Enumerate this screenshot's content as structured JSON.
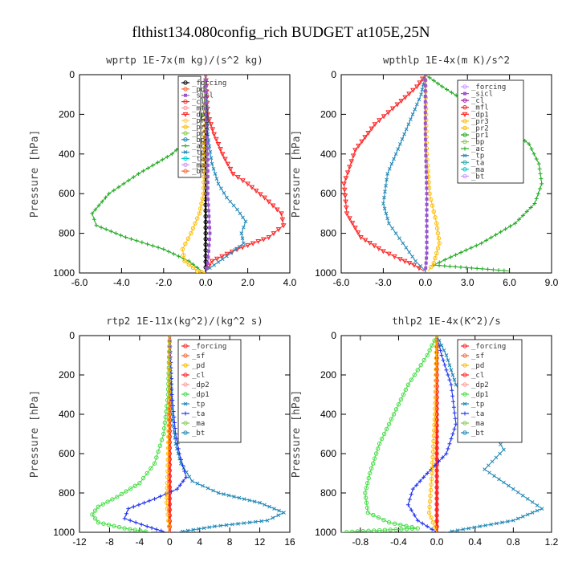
{
  "figure_title": "flthist134.080config_rich  BUDGET at105E,25N",
  "chart_data": [
    {
      "type": "line",
      "title": "wprtp  1E-7x(m kg)/(s^2 kg)",
      "ylabel": "Pressure [hPa]",
      "xlim": [
        -6,
        4
      ],
      "ylim": [
        0,
        1000
      ],
      "xticks": [
        -6,
        -4,
        -2,
        0,
        2,
        4
      ],
      "xtick_labels": [
        "-6.0",
        "-4.0",
        "-2.0",
        "0.0",
        "2.0",
        "4.0"
      ],
      "yticks": [
        0,
        200,
        400,
        600,
        800,
        1000
      ],
      "ytick_labels": [
        "0",
        "200",
        "400",
        "600",
        "800",
        "1000"
      ],
      "legend_position": "top-right",
      "legend": [
        "_forcing",
        "_pd",
        "_sicl",
        "_cl",
        "_mfl",
        "_dp1",
        "_pr3",
        "_pr2",
        "_pr1",
        "_bp",
        "_ac",
        "_tp",
        "_ta",
        "_ma",
        "_bt"
      ],
      "series": [
        {
          "name": "_forcing",
          "color": "#000000",
          "marker": "o",
          "x": [
            0,
            0,
            0,
            0,
            0,
            0
          ],
          "y": [
            0,
            200,
            400,
            600,
            800,
            1000
          ]
        },
        {
          "name": "_ac",
          "color": "#22aa22",
          "marker": "+",
          "x": [
            0,
            -0.1,
            -0.6,
            -1.6,
            -3.2,
            -4.6,
            -5.4,
            -5.2,
            -3.8,
            -2.0,
            -0.8,
            -0.2
          ],
          "y": [
            0,
            200,
            300,
            400,
            500,
            600,
            700,
            760,
            820,
            880,
            940,
            990
          ]
        },
        {
          "name": "_dp1",
          "color": "#ff2222",
          "marker": "v",
          "x": [
            0,
            0.1,
            0.4,
            0.8,
            1.3,
            2.0,
            2.8,
            3.6,
            3.7,
            3.0,
            1.5,
            0.3,
            0
          ],
          "y": [
            0,
            200,
            300,
            400,
            500,
            550,
            620,
            700,
            760,
            820,
            880,
            940,
            990
          ]
        },
        {
          "name": "_tp",
          "color": "#1f88b8",
          "marker": "x",
          "x": [
            0,
            0.1,
            0.3,
            0.6,
            1.0,
            1.5,
            1.9,
            1.7,
            1.8,
            1.2,
            0.4,
            0
          ],
          "y": [
            0,
            300,
            450,
            550,
            620,
            680,
            740,
            800,
            850,
            900,
            960,
            990
          ]
        },
        {
          "name": "_pr2",
          "color": "#ffbb00",
          "marker": "o",
          "x": [
            0,
            -0.1,
            -0.3,
            -0.7,
            -1.1,
            -1.0,
            -0.4,
            0
          ],
          "y": [
            0,
            600,
            700,
            800,
            880,
            940,
            990,
            1000
          ]
        },
        {
          "name": "_sicl",
          "color": "#9955cc",
          "marker": "s",
          "x": [
            0,
            0,
            0.1,
            0.1,
            0.2,
            0.1,
            0
          ],
          "y": [
            0,
            200,
            400,
            600,
            800,
            950,
            1000
          ]
        }
      ]
    },
    {
      "type": "line",
      "title": "wpthlp  1E-4x(m K)/s^2",
      "ylabel": "Pressure [hPa]",
      "xlim": [
        -6,
        9
      ],
      "ylim": [
        0,
        1000
      ],
      "xticks": [
        -6,
        -3,
        0,
        3,
        6,
        9
      ],
      "xtick_labels": [
        "-6.0",
        "-3.0",
        "0.0",
        "3.0",
        "6.0",
        "9.0"
      ],
      "yticks": [
        0,
        200,
        400,
        600,
        800,
        1000
      ],
      "ytick_labels": [
        "0",
        "200",
        "400",
        "600",
        "800",
        "1000"
      ],
      "legend_position": "top-right",
      "legend": [
        "_forcing",
        "_sicl",
        "_cl",
        "_mfl",
        "_dp1",
        "_pr3",
        "_pr2",
        "_pr1",
        "_bp",
        "_ac",
        "_tp",
        "_ta",
        "_ma",
        "_bt"
      ],
      "series": [
        {
          "name": "_ac",
          "color": "#22aa22",
          "marker": "+",
          "x": [
            0,
            1.2,
            3.2,
            5.6,
            7.4,
            8.1,
            8.3,
            7.8,
            6.4,
            4.0,
            1.8,
            0.6,
            6.0
          ],
          "y": [
            0,
            60,
            150,
            250,
            350,
            450,
            550,
            650,
            750,
            850,
            920,
            960,
            990
          ]
        },
        {
          "name": "_dp1",
          "color": "#ff2222",
          "marker": "v",
          "x": [
            0,
            -0.6,
            -2.0,
            -3.6,
            -5.0,
            -5.8,
            -5.6,
            -4.6,
            -3.0,
            -1.8,
            -0.8,
            -0.1
          ],
          "y": [
            0,
            60,
            150,
            250,
            380,
            550,
            700,
            820,
            890,
            930,
            960,
            990
          ]
        },
        {
          "name": "_tp",
          "color": "#1f88b8",
          "marker": "x",
          "x": [
            0,
            -0.3,
            -0.9,
            -1.8,
            -2.7,
            -3.0,
            -2.6,
            -1.6,
            -0.7,
            0
          ],
          "y": [
            0,
            100,
            200,
            350,
            500,
            650,
            750,
            850,
            940,
            990
          ]
        },
        {
          "name": "_pr2",
          "color": "#ffbb00",
          "marker": "o",
          "x": [
            0,
            0.1,
            0.3,
            0.8,
            1.0,
            0.6,
            0.2
          ],
          "y": [
            0,
            400,
            600,
            750,
            850,
            950,
            990
          ]
        },
        {
          "name": "_sicl",
          "color": "#9955cc",
          "marker": "s",
          "x": [
            0,
            0,
            0.1,
            0.1,
            0
          ],
          "y": [
            0,
            300,
            600,
            900,
            1000
          ]
        }
      ]
    },
    {
      "type": "line",
      "title": "rtp2  1E-11x(kg^2)/(kg^2 s)",
      "ylabel": "Pressure [hPa]",
      "xlim": [
        -12,
        16
      ],
      "ylim": [
        0,
        1000
      ],
      "xticks": [
        -12,
        -8,
        -4,
        0,
        4,
        8,
        12,
        16
      ],
      "xtick_labels": [
        "-12",
        "-8",
        "-4",
        "0",
        "4",
        "8",
        "12",
        "16"
      ],
      "yticks": [
        0,
        200,
        400,
        600,
        800,
        1000
      ],
      "ytick_labels": [
        "0",
        "200",
        "400",
        "600",
        "800",
        "1000"
      ],
      "legend_position": "top-right",
      "legend": [
        "_forcing",
        "_sf",
        "_pd",
        "_cl",
        "_dp2",
        "_dp1",
        "_tp",
        "_ta",
        "_ma",
        "_bt"
      ],
      "series": [
        {
          "name": "_forcing",
          "color": "#ff2222",
          "marker": "o",
          "x": [
            0,
            0,
            0,
            0,
            0,
            0
          ],
          "y": [
            0,
            200,
            400,
            600,
            800,
            1000
          ]
        },
        {
          "name": "_dp1",
          "color": "#44dd44",
          "marker": "o",
          "x": [
            0,
            -0.2,
            -0.8,
            -2.0,
            -4.0,
            -7.0,
            -9.5,
            -10.3,
            -9.5,
            -6.0,
            -2.5
          ],
          "y": [
            0,
            300,
            500,
            650,
            750,
            820,
            870,
            910,
            950,
            980,
            1000
          ]
        },
        {
          "name": "_tp",
          "color": "#1f88b8",
          "marker": "x",
          "x": [
            0,
            0.3,
            0.8,
            1.5,
            3.0,
            6.5,
            12.0,
            15.2,
            13.0,
            6.0,
            1.0
          ],
          "y": [
            0,
            400,
            550,
            650,
            740,
            800,
            850,
            900,
            940,
            970,
            1000
          ]
        },
        {
          "name": "_ta",
          "color": "#2233ee",
          "marker": "+",
          "x": [
            0,
            0.3,
            0.8,
            1.3,
            2.2,
            1.0,
            -2.0,
            -5.5,
            -6.0,
            -3.0,
            -0.5
          ],
          "y": [
            0,
            300,
            500,
            600,
            720,
            780,
            830,
            880,
            930,
            970,
            1000
          ]
        },
        {
          "name": "_pd",
          "color": "#ffbb00",
          "marker": "o",
          "x": [
            0,
            -0.1,
            -0.2,
            -0.3,
            -0.4,
            0
          ],
          "y": [
            0,
            400,
            600,
            750,
            850,
            1000
          ]
        }
      ]
    },
    {
      "type": "line",
      "title": "thlp2  1E-4x(K^2)/s",
      "ylabel": "Pressure [hPa]",
      "xlim": [
        -1.0,
        1.2
      ],
      "ylim": [
        0,
        1000
      ],
      "xticks": [
        -0.8,
        -0.4,
        0.0,
        0.4,
        0.8,
        1.2
      ],
      "xtick_labels": [
        "-0.8",
        "-0.4",
        "0.0",
        "0.4",
        "0.8",
        "1.2"
      ],
      "yticks": [
        0,
        200,
        400,
        600,
        800,
        1000
      ],
      "ytick_labels": [
        "0",
        "200",
        "400",
        "600",
        "800",
        "1000"
      ],
      "legend_position": "top-right",
      "legend": [
        "_forcing",
        "_sf",
        "_pd",
        "_cl",
        "_dp2",
        "_dp1",
        "_tp",
        "_ta",
        "_ma",
        "_bt"
      ],
      "series": [
        {
          "name": "_forcing",
          "color": "#ff2222",
          "marker": "o",
          "x": [
            0,
            0,
            0,
            0,
            0,
            0
          ],
          "y": [
            0,
            200,
            400,
            600,
            800,
            1000
          ]
        },
        {
          "name": "_dp1",
          "color": "#44dd44",
          "marker": "o",
          "x": [
            0,
            -0.1,
            -0.3,
            -0.45,
            -0.6,
            -0.7,
            -0.75,
            -0.72,
            -0.5,
            -0.2,
            -1.0
          ],
          "y": [
            0,
            100,
            250,
            400,
            550,
            700,
            800,
            900,
            950,
            980,
            1000
          ]
        },
        {
          "name": "_tp",
          "color": "#1f88b8",
          "marker": "x",
          "x": [
            0,
            0.1,
            0.2,
            0.4,
            0.6,
            0.7,
            0.5,
            0.8,
            1.1,
            0.8,
            0.1
          ],
          "y": [
            0,
            100,
            250,
            400,
            500,
            580,
            680,
            780,
            880,
            940,
            1000
          ]
        },
        {
          "name": "_ta",
          "color": "#2233ee",
          "marker": "+",
          "x": [
            0,
            0.05,
            0.15,
            0.2,
            0.1,
            -0.1,
            -0.25,
            -0.3,
            -0.2,
            0
          ],
          "y": [
            0,
            100,
            250,
            450,
            600,
            700,
            780,
            860,
            940,
            1000
          ]
        },
        {
          "name": "_pd",
          "color": "#ffbb00",
          "marker": "o",
          "x": [
            0,
            -0.02,
            -0.05,
            -0.08,
            0
          ],
          "y": [
            0,
            400,
            700,
            900,
            1000
          ]
        }
      ]
    }
  ]
}
